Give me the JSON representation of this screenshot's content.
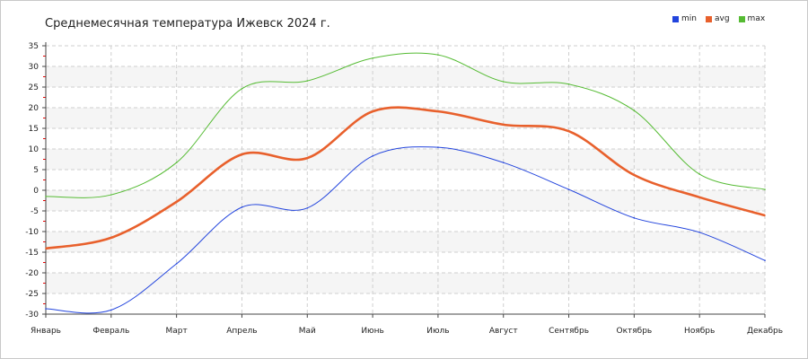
{
  "chart_data": {
    "type": "line",
    "title": "Среднемесячная температура Ижевск  2024 г.",
    "categories": [
      "Январь",
      "Февраль",
      "Март",
      "Апрель",
      "Май",
      "Июнь",
      "Июль",
      "Август",
      "Сентябрь",
      "Октябрь",
      "Ноябрь",
      "Декабрь"
    ],
    "yticks": [
      35,
      30,
      25,
      20,
      15,
      10,
      5,
      0,
      -5,
      -10,
      -15,
      -20,
      -25,
      -30
    ],
    "ylim": [
      -30,
      35
    ],
    "grid": true,
    "legend_position": "top-right",
    "series": [
      {
        "name": "min",
        "color": "#2244dd",
        "values": [
          -28.7,
          -29.0,
          -17.8,
          -4.1,
          -4.3,
          8.3,
          10.4,
          6.7,
          0.2,
          -6.7,
          -10.2,
          -17.0
        ]
      },
      {
        "name": "avg",
        "color": "#e8602c",
        "values": [
          -14.1,
          -11.5,
          -2.8,
          8.7,
          7.8,
          19.1,
          19.1,
          15.9,
          14.3,
          3.7,
          -1.7,
          -6.1
        ]
      },
      {
        "name": "max",
        "color": "#55bb33",
        "values": [
          -1.5,
          -1.1,
          6.7,
          24.6,
          26.5,
          32.0,
          32.8,
          26.3,
          25.7,
          19.3,
          3.9,
          0.2
        ]
      }
    ]
  }
}
